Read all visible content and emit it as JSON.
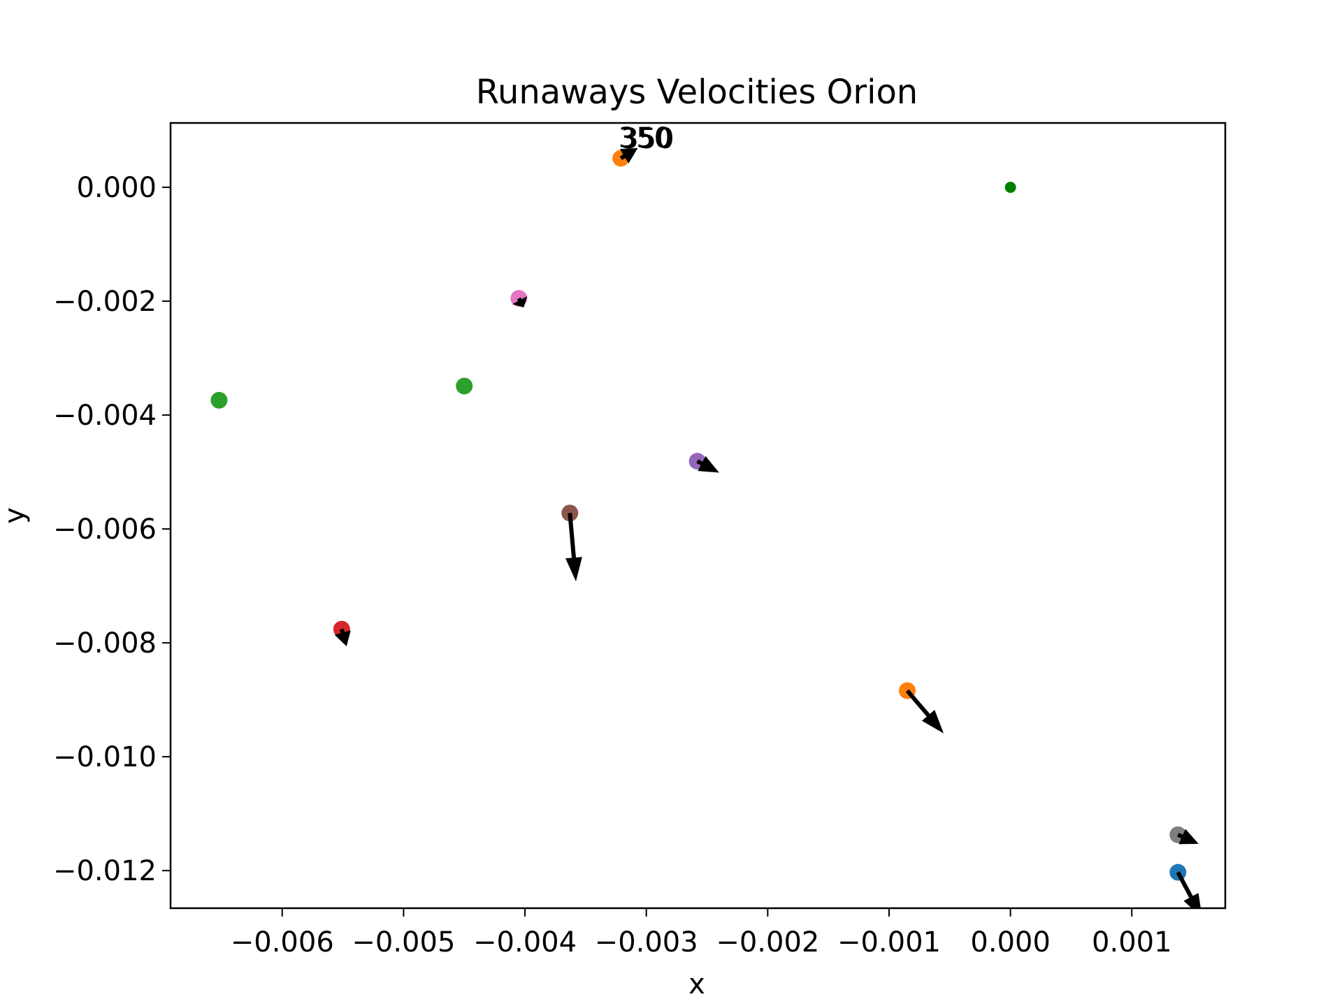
{
  "chart_data": {
    "type": "scatter",
    "title": "Runaways Velocities Orion",
    "xlabel": "x",
    "ylabel": "y",
    "xlim": [
      -0.00692,
      0.00177
    ],
    "ylim": [
      -0.01266,
      0.00113
    ],
    "xticks": [
      -0.006,
      -0.005,
      -0.004,
      -0.003,
      -0.002,
      -0.001,
      0.0,
      0.001
    ],
    "xtick_labels": [
      "−0.006",
      "−0.005",
      "−0.004",
      "−0.003",
      "−0.002",
      "−0.001",
      "0.000",
      "0.001"
    ],
    "yticks": [
      0.0,
      -0.002,
      -0.004,
      -0.006,
      -0.008,
      -0.01,
      -0.012
    ],
    "ytick_labels": [
      "0.000",
      "−0.002",
      "−0.004",
      "−0.006",
      "−0.008",
      "−0.010",
      "−0.012"
    ],
    "grid": false,
    "legend": "none",
    "reference_point": {
      "x": 0.0,
      "y": 0.0,
      "color": "#008000"
    },
    "points": [
      {
        "x": -0.00321,
        "y": 0.00051,
        "color": "#ff7f0e",
        "vx": 0.00014,
        "vy": 0.00018
      },
      {
        "x": -0.00405,
        "y": -0.00195,
        "color": "#e377c2",
        "vx": 4e-05,
        "vy": -0.00016
      },
      {
        "x": -0.00652,
        "y": -0.00374,
        "color": "#2ca02c",
        "vx": 0.0,
        "vy": 0.0
      },
      {
        "x": -0.0045,
        "y": -0.00349,
        "color": "#2ca02c",
        "vx": 0.0,
        "vy": 0.0
      },
      {
        "x": -0.00258,
        "y": -0.00481,
        "color": "#9467bd",
        "vx": 0.00018,
        "vy": -0.0002
      },
      {
        "x": -0.00363,
        "y": -0.00572,
        "color": "#8c564b",
        "vx": 5e-05,
        "vy": -0.0012
      },
      {
        "x": -0.00551,
        "y": -0.00776,
        "color": "#d62728",
        "vx": 4e-05,
        "vy": -0.0003
      },
      {
        "x": -0.00085,
        "y": -0.00884,
        "color": "#ff7f0e",
        "vx": 0.0003,
        "vy": -0.00075
      },
      {
        "x": 0.00138,
        "y": -0.01137,
        "color": "#7f7f7f",
        "vx": 0.00017,
        "vy": -0.00016
      },
      {
        "x": 0.00138,
        "y": -0.01203,
        "color": "#1f77b4",
        "vx": 0.0002,
        "vy": -0.0008
      }
    ],
    "annotations": [
      {
        "text": "350",
        "x": -0.00323,
        "y": 0.0007
      },
      {
        "text": "350",
        "x": -0.00321,
        "y": 0.00069
      }
    ]
  }
}
